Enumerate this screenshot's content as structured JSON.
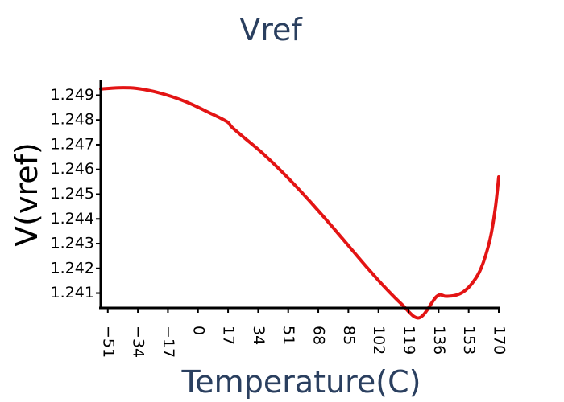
{
  "chart_data": {
    "type": "line",
    "title": "Vref",
    "xlabel": "Temperature(C)",
    "ylabel": "V(vref)",
    "xlim": [
      -55,
      170
    ],
    "ylim": [
      1.2404,
      1.2496
    ],
    "xticks": [
      -51,
      -34,
      -17,
      0,
      17,
      34,
      51,
      68,
      85,
      102,
      119,
      136,
      153,
      170
    ],
    "xtick_labels": [
      "−51",
      "−34",
      "−17",
      "0",
      "17",
      "34",
      "51",
      "68",
      "85",
      "102",
      "119",
      "136",
      "153",
      "170"
    ],
    "yticks": [
      1.241,
      1.242,
      1.243,
      1.244,
      1.245,
      1.246,
      1.247,
      1.248,
      1.249
    ],
    "ytick_labels": [
      "1.241",
      "1.242",
      "1.243",
      "1.244",
      "1.245",
      "1.246",
      "1.247",
      "1.248",
      "1.249"
    ],
    "grid": false,
    "series": [
      {
        "color": "#e31414",
        "x": [
          -55,
          -45,
          -35,
          -25,
          -15,
          -5,
          5,
          12,
          17,
          19,
          25,
          35,
          45,
          55,
          65,
          75,
          85,
          95,
          105,
          115,
          125,
          135,
          140,
          145,
          150,
          155,
          160,
          165,
          168,
          170
        ],
        "y": [
          1.24925,
          1.2493,
          1.24928,
          1.24915,
          1.24895,
          1.24868,
          1.24834,
          1.2481,
          1.2479,
          1.24772,
          1.24735,
          1.24675,
          1.24608,
          1.24535,
          1.24457,
          1.24376,
          1.24292,
          1.24208,
          1.24128,
          1.24056,
          1.24,
          1.24087,
          1.24087,
          1.2409,
          1.24105,
          1.2414,
          1.242,
          1.24315,
          1.2444,
          1.2457
        ]
      }
    ]
  }
}
